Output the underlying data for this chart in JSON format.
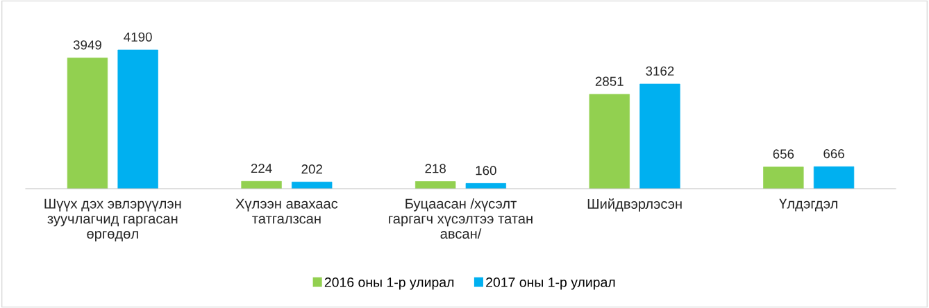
{
  "chart_data": {
    "type": "bar",
    "categories": [
      "Шүүх дэх эвлэрүүлэн\nзуучлагчид гаргасан\nөргөдөл",
      "Хүлээн авахаас\nтатгалзсан",
      "Буцаасан /хүсэлт\nгаргагч хүсэлтээ татан\nавсан/",
      "Шийдвэрлэсэн",
      "Үлдэгдэл"
    ],
    "series": [
      {
        "name": "2016 оны 1-р улирал",
        "color": "#92d050",
        "values": [
          3949,
          224,
          218,
          2851,
          656
        ]
      },
      {
        "name": "2017 оны 1-р улирал",
        "color": "#00b0f0",
        "values": [
          4190,
          202,
          160,
          3162,
          666
        ]
      }
    ],
    "data_labels": true,
    "legend": "bottom",
    "grid": false
  }
}
